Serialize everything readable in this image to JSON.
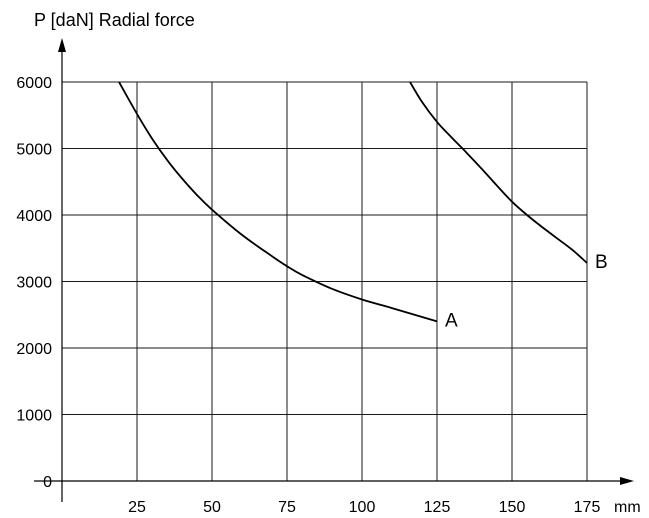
{
  "chart_data": {
    "type": "line",
    "title": "",
    "ylabel": "P [daN] Radial force",
    "xlabel": "mm",
    "xlim": [
      0,
      175
    ],
    "ylim": [
      0,
      6000
    ],
    "x_ticks": [
      25,
      50,
      75,
      100,
      125,
      150,
      175
    ],
    "y_ticks": [
      0,
      1000,
      2000,
      3000,
      4000,
      5000,
      6000
    ],
    "grid": true,
    "series": [
      {
        "name": "A",
        "x": [
          19,
          25,
          30,
          35,
          40,
          45,
          50,
          60,
          70,
          75,
          80,
          90,
          100,
          110,
          125
        ],
        "y": [
          6000,
          5520,
          5150,
          4830,
          4550,
          4300,
          4080,
          3700,
          3380,
          3230,
          3100,
          2890,
          2730,
          2600,
          2400
        ]
      },
      {
        "name": "B",
        "x": [
          116,
          120,
          125,
          130,
          135,
          140,
          145,
          150,
          155,
          160,
          165,
          170,
          175
        ],
        "y": [
          6000,
          5700,
          5400,
          5160,
          4930,
          4690,
          4440,
          4200,
          4000,
          3820,
          3650,
          3480,
          3280
        ]
      }
    ]
  }
}
